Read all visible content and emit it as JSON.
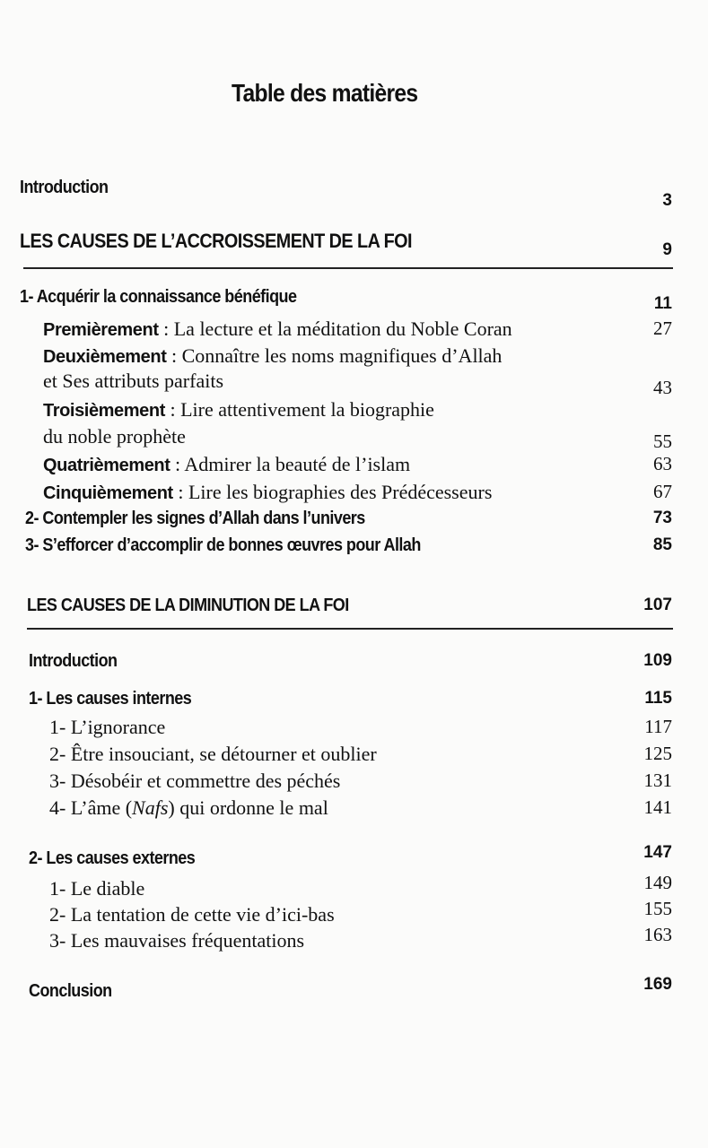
{
  "title": "Table des matières",
  "part1": {
    "intro": {
      "title": "Introduction",
      "page": "3"
    },
    "heading": {
      "title": "LES CAUSES DE L’ACCROISSEMENT DE LA FOI",
      "page": "9"
    },
    "s1": {
      "title": "1- Acquérir la connaissance bénéfique",
      "page": "11"
    },
    "s1_items": [
      {
        "label": "Premièrement",
        "sep": " : ",
        "text": "La lecture et la méditation du Noble Coran",
        "page": "27"
      },
      {
        "label": "Deuxièmement",
        "sep": " : ",
        "text": "Connaître les noms magnifiques d’Allah",
        "text2": "et Ses attributs parfaits",
        "page": "43"
      },
      {
        "label": "Troisièmement",
        "sep": " : ",
        "text": "Lire attentivement la biographie",
        "text2": "du noble prophète",
        "page": "55"
      },
      {
        "label": "Quatrièmement",
        "sep": " : ",
        "text": "Admirer la beauté de l’islam",
        "page": "63"
      },
      {
        "label": "Cinquièmement",
        "sep": " : ",
        "text": "Lire les biographies des Prédécesseurs",
        "page": "67"
      }
    ],
    "s2": {
      "title": "2- Contempler les signes d’Allah dans l’univers",
      "page": "73"
    },
    "s3": {
      "title": "3- S’efforcer d’accomplir de bonnes œuvres pour Allah",
      "page": "85"
    }
  },
  "part2": {
    "heading": {
      "title": "LES CAUSES DE LA DIMINUTION DE LA FOI",
      "page": "107"
    },
    "intro": {
      "title": "Introduction",
      "page": "109"
    },
    "s1": {
      "title": "1- Les causes internes",
      "page": "115"
    },
    "s1_items": [
      {
        "text": "1- L’ignorance",
        "page": "117"
      },
      {
        "text": "2- Être insouciant, se détourner et oublier",
        "page": "125"
      },
      {
        "text": "3- Désobéir et commettre des péchés",
        "page": "131"
      },
      {
        "text_a": "4- L’âme (",
        "text_i": "Nafs",
        "text_b": ") qui ordonne le mal",
        "page": "141"
      }
    ],
    "s2": {
      "title": "2- Les causes externes",
      "page": "147"
    },
    "s2_items": [
      {
        "text": "1- Le diable",
        "page": "149"
      },
      {
        "text": "2- La tentation de cette vie d’ici-bas",
        "page": "155"
      },
      {
        "text": "3- Les mauvaises fréquentations",
        "page": "163"
      }
    ],
    "conclusion": {
      "title": "Conclusion",
      "page": "169"
    }
  }
}
